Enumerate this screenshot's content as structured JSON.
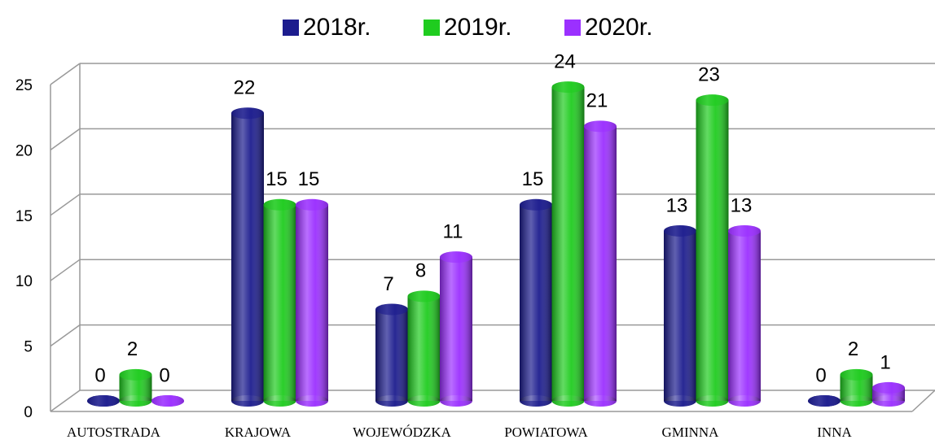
{
  "chart_data": {
    "type": "bar",
    "categories": [
      "AUTOSTRADA",
      "KRAJOWA",
      "WOJEWÓDZKA",
      "POWIATOWA",
      "GMINNA",
      "INNA"
    ],
    "series": [
      {
        "name": "2018r.",
        "color": "#1c1c8e",
        "values": [
          0,
          22,
          7,
          15,
          13,
          0
        ]
      },
      {
        "name": "2019r.",
        "color": "#1fcc1f",
        "values": [
          2,
          15,
          8,
          24,
          23,
          2
        ]
      },
      {
        "name": "2020r.",
        "color": "#9b30ff",
        "values": [
          0,
          15,
          11,
          21,
          13,
          1
        ]
      }
    ],
    "ylim": [
      0,
      25
    ],
    "yticks": [
      0,
      5,
      10,
      15,
      20,
      25
    ],
    "grid": true,
    "legend": "top"
  }
}
